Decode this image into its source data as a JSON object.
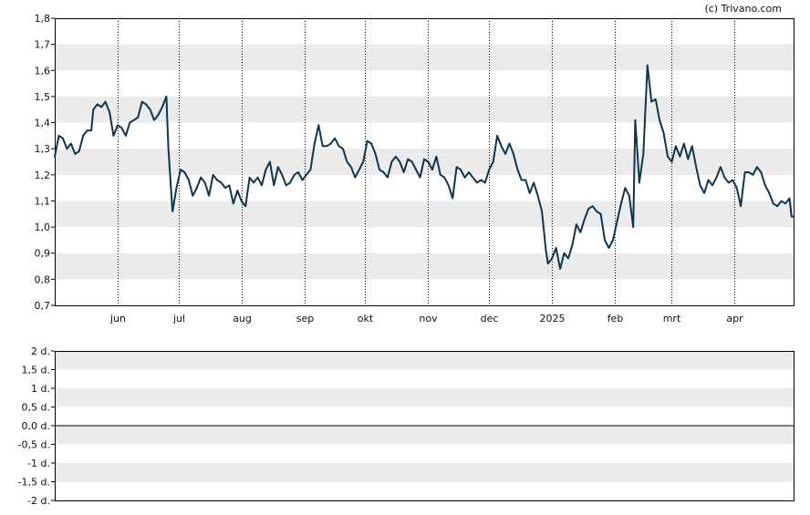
{
  "copyright": "(c) Trivano.com",
  "colors": {
    "line": "#0d3550",
    "band": "#ebebeb",
    "grid": "#000000",
    "frame": "#000000"
  },
  "chart_data": [
    {
      "type": "line",
      "title": "",
      "xlabel": "",
      "ylabel": "",
      "ylim": [
        0.7,
        1.8
      ],
      "grid": true,
      "y_ticks": [
        0.7,
        0.8,
        0.9,
        1.0,
        1.1,
        1.2,
        1.3,
        1.4,
        1.5,
        1.6,
        1.7,
        1.8
      ],
      "y_tick_labels": [
        "0,7",
        "0,8",
        "0,9",
        "1,0",
        "1,1",
        "1,2",
        "1,3",
        "1,4",
        "1,5",
        "1,6",
        "1,7",
        "1,8"
      ],
      "x_range": [
        "2024-05-01",
        "2025-04-30"
      ],
      "x_ticks": [
        {
          "label": "jun",
          "date": "2024-06-01"
        },
        {
          "label": "jul",
          "date": "2024-07-01"
        },
        {
          "label": "aug",
          "date": "2024-08-01"
        },
        {
          "label": "sep",
          "date": "2024-09-01"
        },
        {
          "label": "okt",
          "date": "2024-10-01"
        },
        {
          "label": "nov",
          "date": "2024-11-01"
        },
        {
          "label": "dec",
          "date": "2024-12-01"
        },
        {
          "label": "2025",
          "date": "2025-01-01"
        },
        {
          "label": "feb",
          "date": "2025-02-01"
        },
        {
          "label": "mrt",
          "date": "2025-03-01"
        },
        {
          "label": "apr",
          "date": "2025-04-01"
        }
      ],
      "series": [
        {
          "points": [
            [
              "2024-05-01",
              1.27
            ],
            [
              "2024-05-03",
              1.35
            ],
            [
              "2024-05-05",
              1.34
            ],
            [
              "2024-05-07",
              1.3
            ],
            [
              "2024-05-09",
              1.32
            ],
            [
              "2024-05-11",
              1.28
            ],
            [
              "2024-05-13",
              1.29
            ],
            [
              "2024-05-15",
              1.35
            ],
            [
              "2024-05-17",
              1.37
            ],
            [
              "2024-05-19",
              1.37
            ],
            [
              "2024-05-20",
              1.45
            ],
            [
              "2024-05-22",
              1.47
            ],
            [
              "2024-05-24",
              1.46
            ],
            [
              "2024-05-26",
              1.48
            ],
            [
              "2024-05-28",
              1.44
            ],
            [
              "2024-05-30",
              1.35
            ],
            [
              "2024-06-01",
              1.39
            ],
            [
              "2024-06-03",
              1.38
            ],
            [
              "2024-06-05",
              1.35
            ],
            [
              "2024-06-07",
              1.4
            ],
            [
              "2024-06-09",
              1.41
            ],
            [
              "2024-06-11",
              1.42
            ],
            [
              "2024-06-13",
              1.48
            ],
            [
              "2024-06-15",
              1.47
            ],
            [
              "2024-06-17",
              1.45
            ],
            [
              "2024-06-19",
              1.41
            ],
            [
              "2024-06-21",
              1.43
            ],
            [
              "2024-06-23",
              1.46
            ],
            [
              "2024-06-25",
              1.5
            ],
            [
              "2024-06-26",
              1.3
            ],
            [
              "2024-06-28",
              1.06
            ],
            [
              "2024-06-30",
              1.15
            ],
            [
              "2024-07-02",
              1.22
            ],
            [
              "2024-07-04",
              1.21
            ],
            [
              "2024-07-06",
              1.18
            ],
            [
              "2024-07-08",
              1.12
            ],
            [
              "2024-07-10",
              1.15
            ],
            [
              "2024-07-12",
              1.19
            ],
            [
              "2024-07-14",
              1.17
            ],
            [
              "2024-07-16",
              1.12
            ],
            [
              "2024-07-18",
              1.2
            ],
            [
              "2024-07-20",
              1.18
            ],
            [
              "2024-07-22",
              1.17
            ],
            [
              "2024-07-24",
              1.15
            ],
            [
              "2024-07-26",
              1.16
            ],
            [
              "2024-07-28",
              1.09
            ],
            [
              "2024-07-30",
              1.14
            ],
            [
              "2024-08-01",
              1.1
            ],
            [
              "2024-08-03",
              1.08
            ],
            [
              "2024-08-05",
              1.19
            ],
            [
              "2024-08-07",
              1.17
            ],
            [
              "2024-08-09",
              1.19
            ],
            [
              "2024-08-11",
              1.16
            ],
            [
              "2024-08-13",
              1.22
            ],
            [
              "2024-08-15",
              1.25
            ],
            [
              "2024-08-17",
              1.16
            ],
            [
              "2024-08-19",
              1.23
            ],
            [
              "2024-08-21",
              1.2
            ],
            [
              "2024-08-23",
              1.16
            ],
            [
              "2024-08-25",
              1.17
            ],
            [
              "2024-08-27",
              1.2
            ],
            [
              "2024-08-29",
              1.21
            ],
            [
              "2024-08-31",
              1.18
            ],
            [
              "2024-09-02",
              1.2
            ],
            [
              "2024-09-04",
              1.22
            ],
            [
              "2024-09-06",
              1.32
            ],
            [
              "2024-09-08",
              1.39
            ],
            [
              "2024-09-10",
              1.31
            ],
            [
              "2024-09-12",
              1.31
            ],
            [
              "2024-09-14",
              1.32
            ],
            [
              "2024-09-16",
              1.34
            ],
            [
              "2024-09-18",
              1.31
            ],
            [
              "2024-09-20",
              1.3
            ],
            [
              "2024-09-22",
              1.25
            ],
            [
              "2024-09-24",
              1.23
            ],
            [
              "2024-09-26",
              1.19
            ],
            [
              "2024-09-28",
              1.22
            ],
            [
              "2024-09-30",
              1.25
            ],
            [
              "2024-10-02",
              1.33
            ],
            [
              "2024-10-04",
              1.32
            ],
            [
              "2024-10-06",
              1.28
            ],
            [
              "2024-10-08",
              1.22
            ],
            [
              "2024-10-10",
              1.21
            ],
            [
              "2024-10-12",
              1.19
            ],
            [
              "2024-10-14",
              1.25
            ],
            [
              "2024-10-16",
              1.27
            ],
            [
              "2024-10-18",
              1.25
            ],
            [
              "2024-10-20",
              1.21
            ],
            [
              "2024-10-22",
              1.26
            ],
            [
              "2024-10-24",
              1.25
            ],
            [
              "2024-10-26",
              1.22
            ],
            [
              "2024-10-28",
              1.19
            ],
            [
              "2024-10-30",
              1.26
            ],
            [
              "2024-11-01",
              1.25
            ],
            [
              "2024-11-03",
              1.22
            ],
            [
              "2024-11-05",
              1.27
            ],
            [
              "2024-11-07",
              1.2
            ],
            [
              "2024-11-09",
              1.19
            ],
            [
              "2024-11-11",
              1.16
            ],
            [
              "2024-11-13",
              1.11
            ],
            [
              "2024-11-15",
              1.23
            ],
            [
              "2024-11-17",
              1.22
            ],
            [
              "2024-11-19",
              1.19
            ],
            [
              "2024-11-21",
              1.21
            ],
            [
              "2024-11-23",
              1.19
            ],
            [
              "2024-11-25",
              1.17
            ],
            [
              "2024-11-27",
              1.18
            ],
            [
              "2024-11-29",
              1.17
            ],
            [
              "2024-12-01",
              1.22
            ],
            [
              "2024-12-03",
              1.25
            ],
            [
              "2024-12-05",
              1.35
            ],
            [
              "2024-12-07",
              1.31
            ],
            [
              "2024-12-09",
              1.28
            ],
            [
              "2024-12-11",
              1.32
            ],
            [
              "2024-12-13",
              1.28
            ],
            [
              "2024-12-15",
              1.22
            ],
            [
              "2024-12-17",
              1.18
            ],
            [
              "2024-12-19",
              1.18
            ],
            [
              "2024-12-21",
              1.13
            ],
            [
              "2024-12-23",
              1.17
            ],
            [
              "2024-12-25",
              1.12
            ],
            [
              "2024-12-27",
              1.06
            ],
            [
              "2024-12-29",
              0.91
            ],
            [
              "2024-12-30",
              0.86
            ],
            [
              "2025-01-01",
              0.88
            ],
            [
              "2025-01-03",
              0.92
            ],
            [
              "2025-01-05",
              0.84
            ],
            [
              "2025-01-07",
              0.9
            ],
            [
              "2025-01-09",
              0.88
            ],
            [
              "2025-01-11",
              0.93
            ],
            [
              "2025-01-13",
              1.01
            ],
            [
              "2025-01-15",
              0.98
            ],
            [
              "2025-01-17",
              1.03
            ],
            [
              "2025-01-19",
              1.07
            ],
            [
              "2025-01-21",
              1.08
            ],
            [
              "2025-01-23",
              1.06
            ],
            [
              "2025-01-25",
              1.05
            ],
            [
              "2025-01-27",
              0.95
            ],
            [
              "2025-01-29",
              0.92
            ],
            [
              "2025-01-31",
              0.95
            ],
            [
              "2025-02-02",
              1.02
            ],
            [
              "2025-02-04",
              1.09
            ],
            [
              "2025-02-06",
              1.15
            ],
            [
              "2025-02-08",
              1.12
            ],
            [
              "2025-02-10",
              1.0
            ],
            [
              "2025-02-11",
              1.41
            ],
            [
              "2025-02-13",
              1.17
            ],
            [
              "2025-02-15",
              1.28
            ],
            [
              "2025-02-17",
              1.62
            ],
            [
              "2025-02-19",
              1.48
            ],
            [
              "2025-02-21",
              1.49
            ],
            [
              "2025-02-23",
              1.41
            ],
            [
              "2025-02-25",
              1.36
            ],
            [
              "2025-02-27",
              1.27
            ],
            [
              "2025-03-01",
              1.25
            ],
            [
              "2025-03-03",
              1.31
            ],
            [
              "2025-03-05",
              1.27
            ],
            [
              "2025-03-07",
              1.32
            ],
            [
              "2025-03-09",
              1.26
            ],
            [
              "2025-03-11",
              1.31
            ],
            [
              "2025-03-13",
              1.23
            ],
            [
              "2025-03-15",
              1.16
            ],
            [
              "2025-03-17",
              1.13
            ],
            [
              "2025-03-19",
              1.18
            ],
            [
              "2025-03-21",
              1.16
            ],
            [
              "2025-03-23",
              1.19
            ],
            [
              "2025-03-25",
              1.23
            ],
            [
              "2025-03-27",
              1.19
            ],
            [
              "2025-03-29",
              1.17
            ],
            [
              "2025-03-31",
              1.18
            ],
            [
              "2025-04-02",
              1.15
            ],
            [
              "2025-04-04",
              1.08
            ],
            [
              "2025-04-06",
              1.21
            ],
            [
              "2025-04-08",
              1.21
            ],
            [
              "2025-04-10",
              1.2
            ],
            [
              "2025-04-12",
              1.23
            ],
            [
              "2025-04-14",
              1.21
            ],
            [
              "2025-04-16",
              1.16
            ],
            [
              "2025-04-18",
              1.13
            ],
            [
              "2025-04-20",
              1.09
            ],
            [
              "2025-04-22",
              1.08
            ],
            [
              "2025-04-24",
              1.1
            ],
            [
              "2025-04-26",
              1.09
            ],
            [
              "2025-04-28",
              1.11
            ],
            [
              "2025-04-29",
              1.04
            ],
            [
              "2025-04-30",
              1.04
            ]
          ]
        }
      ]
    },
    {
      "type": "bar",
      "title": "",
      "ylim": [
        -2,
        2
      ],
      "grid": true,
      "y_ticks": [
        2,
        1.5,
        1,
        0.5,
        0,
        -0.5,
        -1,
        -1.5,
        -2
      ],
      "y_tick_labels": [
        "2 d.",
        "1,5 d.",
        "1 d.",
        "0,5 d.",
        "0,0 d.",
        "-0,5 d.",
        "-1 d.",
        "-1,5 d.",
        "-2 d."
      ],
      "values": []
    }
  ]
}
